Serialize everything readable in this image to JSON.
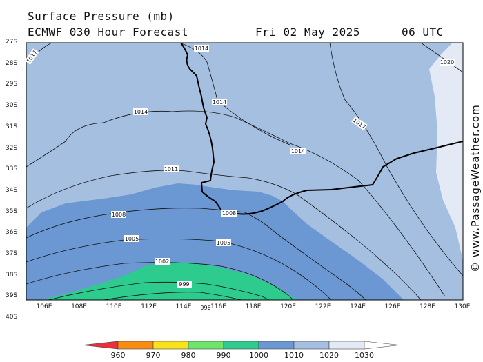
{
  "header": {
    "title": "Surface Pressure (mb)",
    "model": "ECMWF 030 Hour Forecast",
    "date": "Fri 02 May 2025",
    "time": "06 UTC"
  },
  "credit": "© www.PassageWeather.com",
  "lat_labels": [
    "27S",
    "28S",
    "29S",
    "30S",
    "31S",
    "32S",
    "33S",
    "34S",
    "35S",
    "36S",
    "37S",
    "38S",
    "39S",
    "40S"
  ],
  "lon_labels": [
    "106E",
    "108E",
    "110E",
    "112E",
    "114E",
    "116E",
    "118E",
    "120E",
    "122E",
    "124E",
    "126E",
    "128E",
    "130E"
  ],
  "isobar_labels": [
    "1017",
    "1014",
    "1014",
    "1014",
    "1017",
    "1014",
    "1020",
    "1011",
    "1008",
    "1008",
    "1005",
    "1005",
    "1002",
    "999",
    "996"
  ],
  "legend": {
    "values": [
      "960",
      "970",
      "980",
      "990",
      "1000",
      "1010",
      "1020",
      "1030"
    ],
    "colors": [
      "#e8303a",
      "#f78c10",
      "#f9e21c",
      "#6ee46a",
      "#2ecb8f",
      "#6b97d2",
      "#a5bfe0",
      "#e4eaf5",
      "#ffffff"
    ]
  },
  "fill_colors": {
    "band_990_1000": "#2ecb8f",
    "band_1000_1010": "#6b97d2",
    "band_1010_1020": "#a5bfe0",
    "band_1020_1030": "#e4eaf5"
  }
}
